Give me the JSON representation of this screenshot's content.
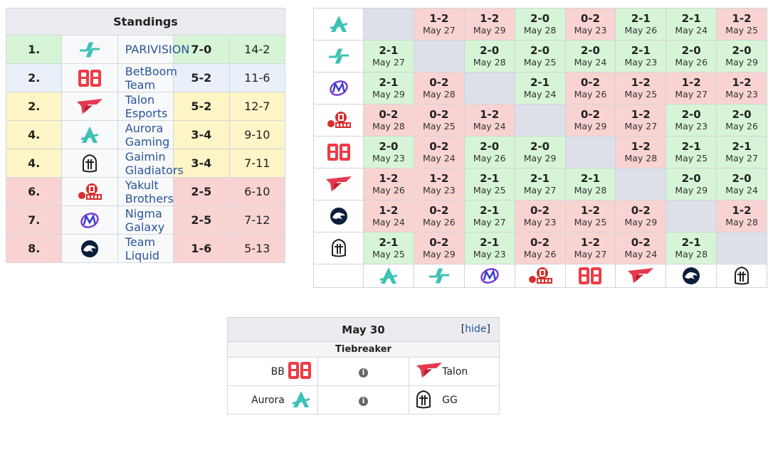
{
  "standings": {
    "title": "Standings",
    "rows": [
      {
        "rank": "1.",
        "team": "PARIVISION",
        "icon": "parivision-logo-icon",
        "score": "7-0",
        "games": "14-2",
        "status": "green"
      },
      {
        "rank": "2.",
        "team": "BetBoom Team",
        "icon": "betboom-logo-icon",
        "score": "5-2",
        "games": "11-6",
        "status": "blue"
      },
      {
        "rank": "2.",
        "team": "Talon Esports",
        "icon": "talon-logo-icon",
        "score": "5-2",
        "games": "12-7",
        "status": "yellow"
      },
      {
        "rank": "4.",
        "team": "Aurora Gaming",
        "icon": "aurora-logo-icon",
        "score": "3-4",
        "games": "9-10",
        "status": "yellow"
      },
      {
        "rank": "4.",
        "team": "Gaimin Gladiators",
        "icon": "gaimin-logo-icon",
        "score": "3-4",
        "games": "7-11",
        "status": "yellow"
      },
      {
        "rank": "6.",
        "team": "Yakult Brothers",
        "icon": "yakult-logo-icon",
        "score": "2-5",
        "games": "6-10",
        "status": "red"
      },
      {
        "rank": "7.",
        "team": "Nigma Galaxy",
        "icon": "nigma-logo-icon",
        "score": "2-5",
        "games": "7-12",
        "status": "red"
      },
      {
        "rank": "8.",
        "team": "Team Liquid",
        "icon": "liquid-logo-icon",
        "score": "1-6",
        "games": "5-13",
        "status": "red"
      }
    ]
  },
  "crosstable": {
    "row_icons": [
      "aurora",
      "parivision",
      "nigma",
      "yakult",
      "betboom",
      "talon",
      "liquid",
      "gaimin"
    ],
    "col_icons": [
      "aurora",
      "parivision",
      "nigma",
      "yakult",
      "betboom",
      "talon",
      "liquid",
      "gaimin"
    ],
    "rows": [
      [
        null,
        {
          "r": "1-2",
          "d": "May 27"
        },
        {
          "r": "1-2",
          "d": "May 29"
        },
        {
          "r": "2-0",
          "d": "May 28"
        },
        {
          "r": "0-2",
          "d": "May 23"
        },
        {
          "r": "2-1",
          "d": "May 26"
        },
        {
          "r": "2-1",
          "d": "May 24"
        },
        {
          "r": "1-2",
          "d": "May 25"
        }
      ],
      [
        {
          "r": "2-1",
          "d": "May 27"
        },
        null,
        {
          "r": "2-0",
          "d": "May 28"
        },
        {
          "r": "2-0",
          "d": "May 25"
        },
        {
          "r": "2-0",
          "d": "May 24"
        },
        {
          "r": "2-1",
          "d": "May 23"
        },
        {
          "r": "2-0",
          "d": "May 26"
        },
        {
          "r": "2-0",
          "d": "May 29"
        }
      ],
      [
        {
          "r": "2-1",
          "d": "May 29"
        },
        {
          "r": "0-2",
          "d": "May 28"
        },
        null,
        {
          "r": "2-1",
          "d": "May 24"
        },
        {
          "r": "0-2",
          "d": "May 26"
        },
        {
          "r": "1-2",
          "d": "May 25"
        },
        {
          "r": "1-2",
          "d": "May 27"
        },
        {
          "r": "1-2",
          "d": "May 23"
        }
      ],
      [
        {
          "r": "0-2",
          "d": "May 28"
        },
        {
          "r": "0-2",
          "d": "May 25"
        },
        {
          "r": "1-2",
          "d": "May 24"
        },
        null,
        {
          "r": "0-2",
          "d": "May 29"
        },
        {
          "r": "1-2",
          "d": "May 27"
        },
        {
          "r": "2-0",
          "d": "May 23"
        },
        {
          "r": "2-0",
          "d": "May 26"
        }
      ],
      [
        {
          "r": "2-0",
          "d": "May 23"
        },
        {
          "r": "0-2",
          "d": "May 24"
        },
        {
          "r": "2-0",
          "d": "May 26"
        },
        {
          "r": "2-0",
          "d": "May 29"
        },
        null,
        {
          "r": "1-2",
          "d": "May 28"
        },
        {
          "r": "2-1",
          "d": "May 25"
        },
        {
          "r": "2-1",
          "d": "May 27"
        }
      ],
      [
        {
          "r": "1-2",
          "d": "May 26"
        },
        {
          "r": "1-2",
          "d": "May 23"
        },
        {
          "r": "2-1",
          "d": "May 25"
        },
        {
          "r": "2-1",
          "d": "May 27"
        },
        {
          "r": "2-1",
          "d": "May 28"
        },
        null,
        {
          "r": "2-0",
          "d": "May 29"
        },
        {
          "r": "2-0",
          "d": "May 24"
        }
      ],
      [
        {
          "r": "1-2",
          "d": "May 24"
        },
        {
          "r": "0-2",
          "d": "May 26"
        },
        {
          "r": "2-1",
          "d": "May 27"
        },
        {
          "r": "0-2",
          "d": "May 23"
        },
        {
          "r": "1-2",
          "d": "May 25"
        },
        {
          "r": "0-2",
          "d": "May 29"
        },
        null,
        {
          "r": "1-2",
          "d": "May 28"
        }
      ],
      [
        {
          "r": "2-1",
          "d": "May 25"
        },
        {
          "r": "0-2",
          "d": "May 29"
        },
        {
          "r": "2-1",
          "d": "May 23"
        },
        {
          "r": "0-2",
          "d": "May 26"
        },
        {
          "r": "1-2",
          "d": "May 27"
        },
        {
          "r": "0-2",
          "d": "May 24"
        },
        {
          "r": "2-1",
          "d": "May 28"
        },
        null
      ]
    ]
  },
  "match": {
    "date": "May 30",
    "hide_link": "hide",
    "bracket_open": "[",
    "bracket_close": "]",
    "section": "Tiebreaker",
    "games": [
      {
        "left": "BB",
        "left_icon": "betboom",
        "right": "Talon",
        "right_icon": "talon"
      },
      {
        "left": "Aurora",
        "left_icon": "aurora",
        "right": "GG",
        "right_icon": "gaimin"
      }
    ]
  },
  "colors": {
    "win": "#d6f5d6",
    "loss": "#f9d3d2",
    "self": "#dde0e8",
    "link": "#2a5599",
    "header": "#eaecf0"
  }
}
